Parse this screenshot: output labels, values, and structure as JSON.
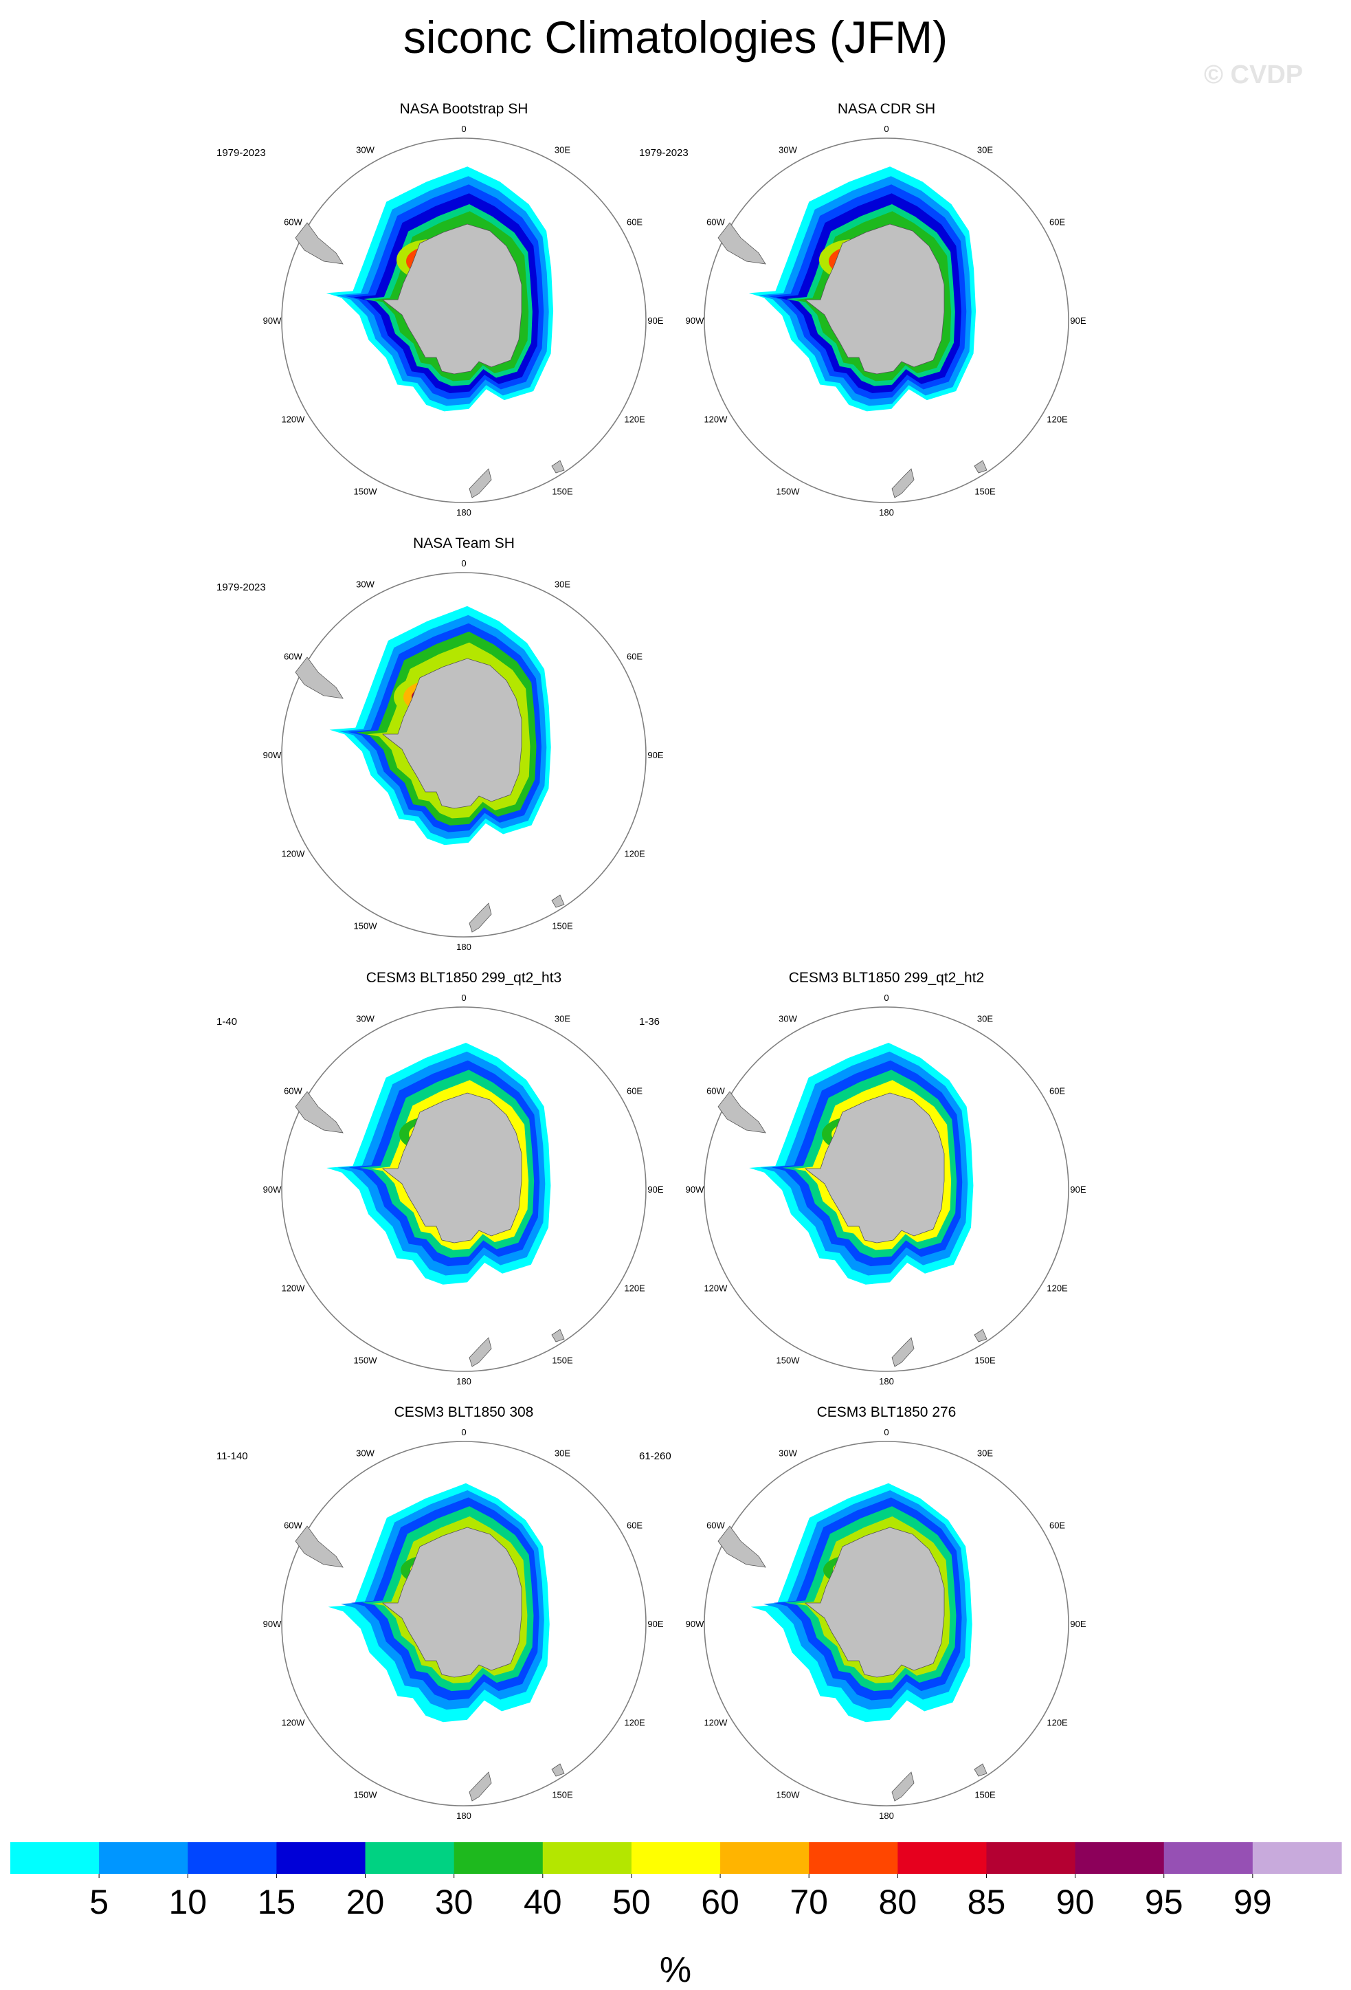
{
  "title": "siconc Climatologies (JFM)",
  "watermark": "© CVDP",
  "map": {
    "longitude_labels": [
      "0",
      "30E",
      "60E",
      "90E",
      "120E",
      "150E",
      "180",
      "150W",
      "120W",
      "90W",
      "60W",
      "30W"
    ]
  },
  "colors": {
    "land": "#c0c0c0",
    "map_outline": "#808080"
  },
  "colorbar": {
    "unit": "%",
    "tick_labels": [
      "5",
      "10",
      "15",
      "20",
      "30",
      "40",
      "50",
      "60",
      "70",
      "80",
      "85",
      "90",
      "95",
      "99"
    ],
    "colors": [
      "#00ffff",
      "#0096ff",
      "#0046ff",
      "#0000d7",
      "#00d282",
      "#1eb91e",
      "#b4e600",
      "#ffff00",
      "#ffb400",
      "#ff4600",
      "#e6001e",
      "#b40032",
      "#8c005a",
      "#9650b4",
      "#c8aadc"
    ]
  },
  "panels": [
    {
      "title": "NASA Bootstrap SH",
      "years": "1979-2023"
    },
    {
      "title": "NASA CDR SH",
      "years": "1979-2023"
    },
    {
      "title": "NASA Team SH",
      "years": "1979-2023"
    },
    {
      "title": "CESM3 BLT1850 299_qt2_ht3",
      "years": "1-40"
    },
    {
      "title": "CESM3 BLT1850 299_qt2_ht2",
      "years": "1-36"
    },
    {
      "title": "CESM3 BLT1850 308",
      "years": "11-140"
    },
    {
      "title": "CESM3 BLT1850 276",
      "years": "61-260"
    }
  ]
}
